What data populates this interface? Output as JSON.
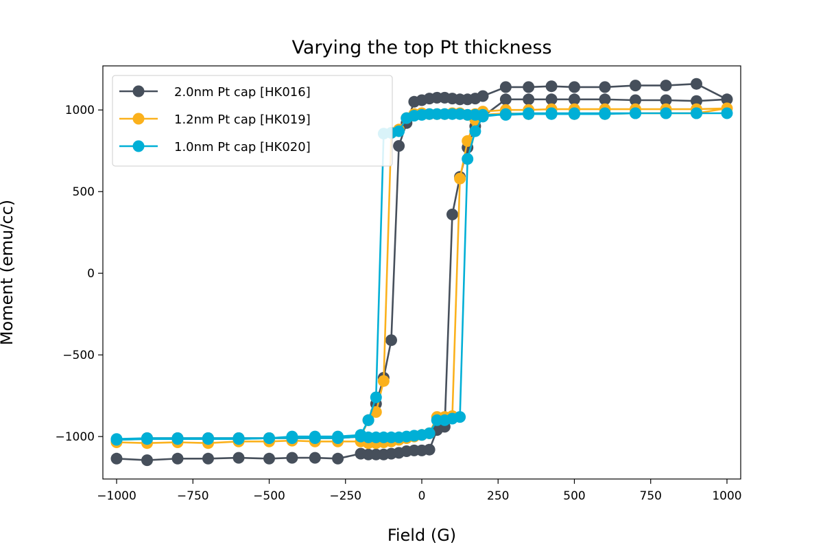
{
  "chart_data": {
    "type": "line",
    "title": "Varying the top Pt thickness",
    "xlabel": "Field (G)",
    "ylabel": "Moment (emu/cc)",
    "xlim": [
      -1045,
      1045
    ],
    "ylim": [
      -1260,
      1270
    ],
    "xticks": [
      -1000,
      -750,
      -500,
      -250,
      0,
      250,
      500,
      750,
      1000
    ],
    "yticks": [
      -1000,
      -500,
      0,
      500,
      1000
    ],
    "xtick_labels": [
      "−1000",
      "−750",
      "−500",
      "−250",
      "0",
      "250",
      "500",
      "750",
      "1000"
    ],
    "ytick_labels": [
      "−1000",
      "−500",
      "0",
      "500",
      "1000"
    ],
    "grid": false,
    "legend_position": "top-left",
    "series": [
      {
        "name": "2.0nm Pt cap [HK016]",
        "color": "#464f5b",
        "x": [
          -1000,
          -900,
          -800,
          -700,
          -600,
          -500,
          -425,
          -350,
          -275,
          -200,
          -175,
          -150,
          -125,
          -100,
          -75,
          -50,
          -25,
          0,
          25,
          50,
          75,
          100,
          125,
          150,
          175,
          200,
          275,
          350,
          425,
          500,
          600,
          700,
          800,
          900,
          1000,
          900,
          800,
          700,
          600,
          500,
          425,
          350,
          275,
          200,
          175,
          150,
          125,
          100,
          75,
          50,
          25,
          0,
          -25,
          -50,
          -75,
          -100,
          -125,
          -150,
          -175,
          -200,
          -275,
          -350,
          -425,
          -500,
          -600,
          -700,
          -800,
          -900,
          -1000
        ],
        "y": [
          -1135,
          -1145,
          -1135,
          -1135,
          -1130,
          -1135,
          -1130,
          -1130,
          -1135,
          -1105,
          -1110,
          -1110,
          -1110,
          -1105,
          -1100,
          -1090,
          -1085,
          -1085,
          -1080,
          -960,
          -940,
          360,
          590,
          770,
          900,
          960,
          1065,
          1065,
          1065,
          1065,
          1065,
          1060,
          1060,
          1055,
          1065,
          1160,
          1150,
          1150,
          1140,
          1140,
          1145,
          1140,
          1140,
          1085,
          1070,
          1065,
          1065,
          1070,
          1075,
          1075,
          1070,
          1060,
          1050,
          920,
          780,
          -410,
          -640,
          -800,
          -900,
          -1000,
          -1010,
          -1010,
          -1010,
          -1010,
          -1010,
          -1010,
          -1010,
          -1010,
          -1020
        ]
      },
      {
        "name": "1.2nm Pt cap [HK019]",
        "color": "#fbb11c",
        "x": [
          -1000,
          -900,
          -800,
          -700,
          -600,
          -500,
          -425,
          -350,
          -275,
          -200,
          -175,
          -150,
          -125,
          -100,
          -75,
          -50,
          -25,
          0,
          25,
          50,
          75,
          100,
          125,
          150,
          175,
          200,
          275,
          350,
          425,
          500,
          600,
          700,
          800,
          900,
          1000,
          900,
          800,
          700,
          600,
          500,
          425,
          350,
          275,
          200,
          175,
          150,
          125,
          100,
          75,
          50,
          25,
          0,
          -25,
          -50,
          -75,
          -100,
          -125,
          -150,
          -175,
          -200,
          -275,
          -350,
          -425,
          -500,
          -600,
          -700,
          -800,
          -900,
          -1000
        ],
        "y": [
          -1035,
          -1040,
          -1035,
          -1040,
          -1030,
          -1030,
          -1025,
          -1030,
          -1030,
          -1030,
          -1040,
          -1040,
          -1035,
          -1030,
          -1020,
          -1010,
          -1000,
          -990,
          -980,
          -880,
          -880,
          -875,
          580,
          810,
          940,
          990,
          1000,
          1000,
          1005,
          1005,
          1005,
          1005,
          1005,
          1005,
          1010,
          980,
          980,
          980,
          975,
          975,
          980,
          975,
          980,
          970,
          975,
          970,
          980,
          980,
          975,
          975,
          975,
          980,
          975,
          950,
          880,
          860,
          -660,
          -850,
          -900,
          -1000,
          -1010,
          -1010,
          -1010,
          -1010,
          -1015,
          -1015,
          -1015,
          -1015,
          -1020
        ]
      },
      {
        "name": "1.0nm Pt cap [HK020]",
        "color": "#00afd6",
        "x": [
          -1000,
          -900,
          -800,
          -700,
          -600,
          -500,
          -425,
          -350,
          -275,
          -200,
          -175,
          -150,
          -125,
          -100,
          -75,
          -50,
          -25,
          0,
          25,
          50,
          75,
          100,
          125,
          150,
          175,
          200,
          275,
          350,
          425,
          500,
          600,
          700,
          800,
          900,
          1000,
          900,
          800,
          700,
          600,
          500,
          425,
          350,
          275,
          200,
          175,
          150,
          125,
          100,
          75,
          50,
          25,
          0,
          -25,
          -50,
          -75,
          -100,
          -125,
          -150,
          -175,
          -200,
          -275,
          -350,
          -425,
          -500,
          -600,
          -700,
          -800,
          -900,
          -1000
        ],
        "y": [
          -1020,
          -1015,
          -1015,
          -1015,
          -1015,
          -1010,
          -1010,
          -1010,
          -1010,
          -1000,
          -1005,
          -1005,
          -1005,
          -1005,
          -1005,
          -1000,
          -995,
          -990,
          -980,
          -900,
          -900,
          -890,
          -880,
          700,
          870,
          960,
          975,
          980,
          980,
          980,
          980,
          980,
          980,
          980,
          980,
          980,
          980,
          980,
          975,
          975,
          975,
          975,
          970,
          970,
          970,
          970,
          975,
          975,
          975,
          975,
          975,
          970,
          965,
          950,
          870,
          860,
          855,
          -760,
          -900,
          -990,
          -1000,
          -1000,
          -1000,
          -1010,
          -1010,
          -1010,
          -1010,
          -1010,
          -1015
        ]
      }
    ]
  }
}
